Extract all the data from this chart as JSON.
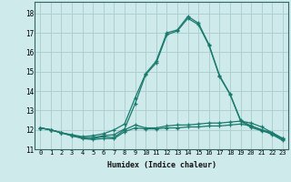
{
  "xlabel": "Humidex (Indice chaleur)",
  "bg_color": "#ceeaea",
  "grid_color": "#aed0d0",
  "line_color": "#1a7a6e",
  "xlim": [
    -0.5,
    23.5
  ],
  "ylim": [
    11.0,
    18.6
  ],
  "yticks": [
    11,
    12,
    13,
    14,
    15,
    16,
    17,
    18
  ],
  "xticks": [
    0,
    1,
    2,
    3,
    4,
    5,
    6,
    7,
    8,
    9,
    10,
    11,
    12,
    13,
    14,
    15,
    16,
    17,
    18,
    19,
    20,
    21,
    22,
    23
  ],
  "series": [
    [
      12.1,
      12.0,
      11.85,
      11.7,
      11.6,
      11.55,
      11.65,
      11.6,
      12.0,
      12.25,
      12.1,
      12.1,
      12.2,
      12.25,
      12.25,
      12.3,
      12.35,
      12.35,
      12.4,
      12.45,
      12.35,
      12.15,
      11.85,
      11.55
    ],
    [
      12.1,
      12.0,
      11.85,
      11.75,
      11.65,
      11.7,
      11.8,
      12.0,
      12.3,
      13.65,
      14.9,
      15.55,
      17.0,
      17.15,
      17.85,
      17.5,
      16.4,
      14.8,
      13.85,
      12.5,
      12.2,
      12.0,
      11.85,
      11.55
    ],
    [
      12.1,
      12.0,
      11.85,
      11.7,
      11.6,
      11.6,
      11.7,
      11.75,
      12.05,
      13.35,
      14.85,
      15.45,
      16.9,
      17.1,
      17.75,
      17.42,
      16.35,
      14.75,
      13.82,
      12.45,
      12.12,
      11.95,
      11.8,
      11.5
    ],
    [
      12.1,
      12.0,
      11.85,
      11.7,
      11.55,
      11.5,
      11.55,
      11.55,
      11.9,
      12.1,
      12.05,
      12.05,
      12.1,
      12.1,
      12.15,
      12.15,
      12.2,
      12.2,
      12.25,
      12.3,
      12.2,
      12.0,
      11.75,
      11.45
    ]
  ]
}
